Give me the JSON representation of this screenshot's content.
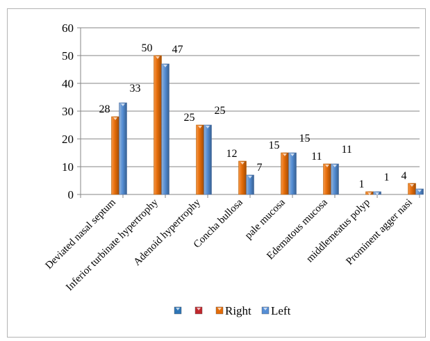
{
  "chart_data": {
    "type": "bar",
    "categories": [
      "Deviated nasal septum",
      "Inferior turbinate hypertrophy",
      "Adenoid hypertrophy",
      "Concha bullosa",
      "pale mucosa",
      "Edematous mucosa",
      "middlemeatus polyp",
      "Prominent agger nasi"
    ],
    "series": [
      {
        "name": "Right",
        "values": [
          28,
          50,
          25,
          12,
          15,
          11,
          1,
          4
        ],
        "color": "#e36c09"
      },
      {
        "name": "Left",
        "values": [
          33,
          47,
          25,
          7,
          15,
          11,
          1,
          2
        ],
        "color": "#558ed5"
      }
    ],
    "legend_entries": [
      {
        "name": "",
        "color": "#2e75b6"
      },
      {
        "name": "",
        "color": "#c0282d"
      },
      {
        "name": "Right",
        "color": "#e36c09"
      },
      {
        "name": "Left",
        "color": "#558ed5"
      }
    ],
    "y_ticks": [
      0,
      10,
      20,
      30,
      40,
      50,
      60
    ],
    "ylim": [
      0,
      60
    ],
    "grid": true,
    "legend_position": "bottom",
    "title": "",
    "xlabel": "",
    "ylabel": ""
  }
}
